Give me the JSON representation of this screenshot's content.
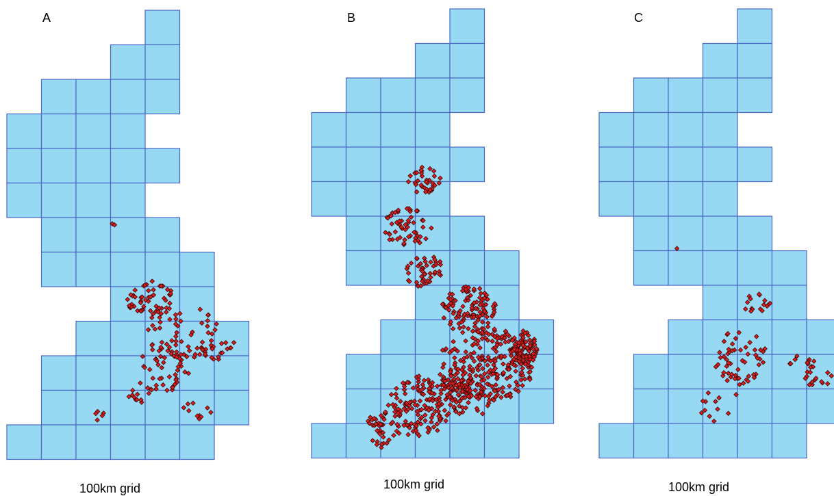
{
  "panels": [
    {
      "id": "A",
      "label": "A",
      "caption": "100km grid"
    },
    {
      "id": "B",
      "label": "B",
      "caption": "100km grid"
    },
    {
      "id": "C",
      "label": "C",
      "caption": "100km grid"
    }
  ],
  "colors": {
    "cell_fill": "#97d9f2",
    "cell_stroke": "#4a67c6",
    "point_fill": "#d81e1e",
    "point_stroke": "#3b0000"
  }
}
